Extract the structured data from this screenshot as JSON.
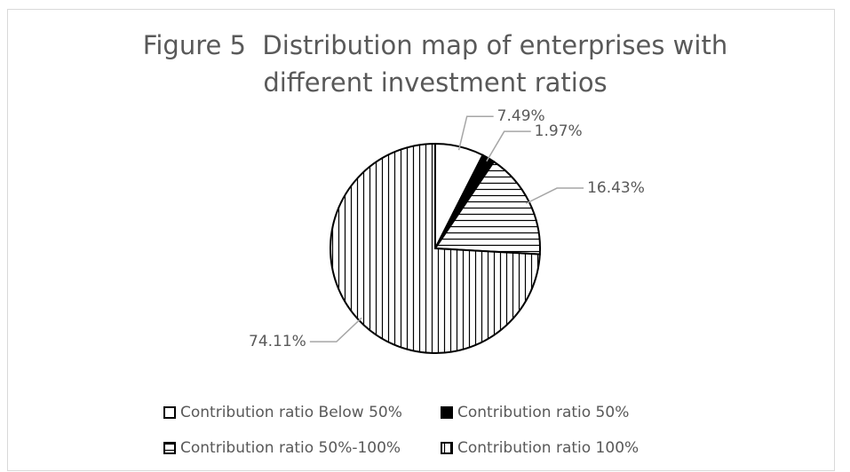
{
  "chart_data": {
    "type": "pie",
    "title": "Figure 5  Distribution map of enterprises with different investment ratios",
    "categories": [
      "Contribution ratio Below 50%",
      "Contribution ratio 50%",
      "Contribution ratio 50%-100%",
      "Contribution ratio 100%"
    ],
    "values": [
      7.49,
      1.97,
      16.43,
      74.11
    ],
    "value_labels": [
      "7.49%",
      "1.97%",
      "16.43%",
      "74.11%"
    ],
    "patterns": [
      "none",
      "solid",
      "horizontal",
      "vertical"
    ],
    "legend": "bottom"
  }
}
